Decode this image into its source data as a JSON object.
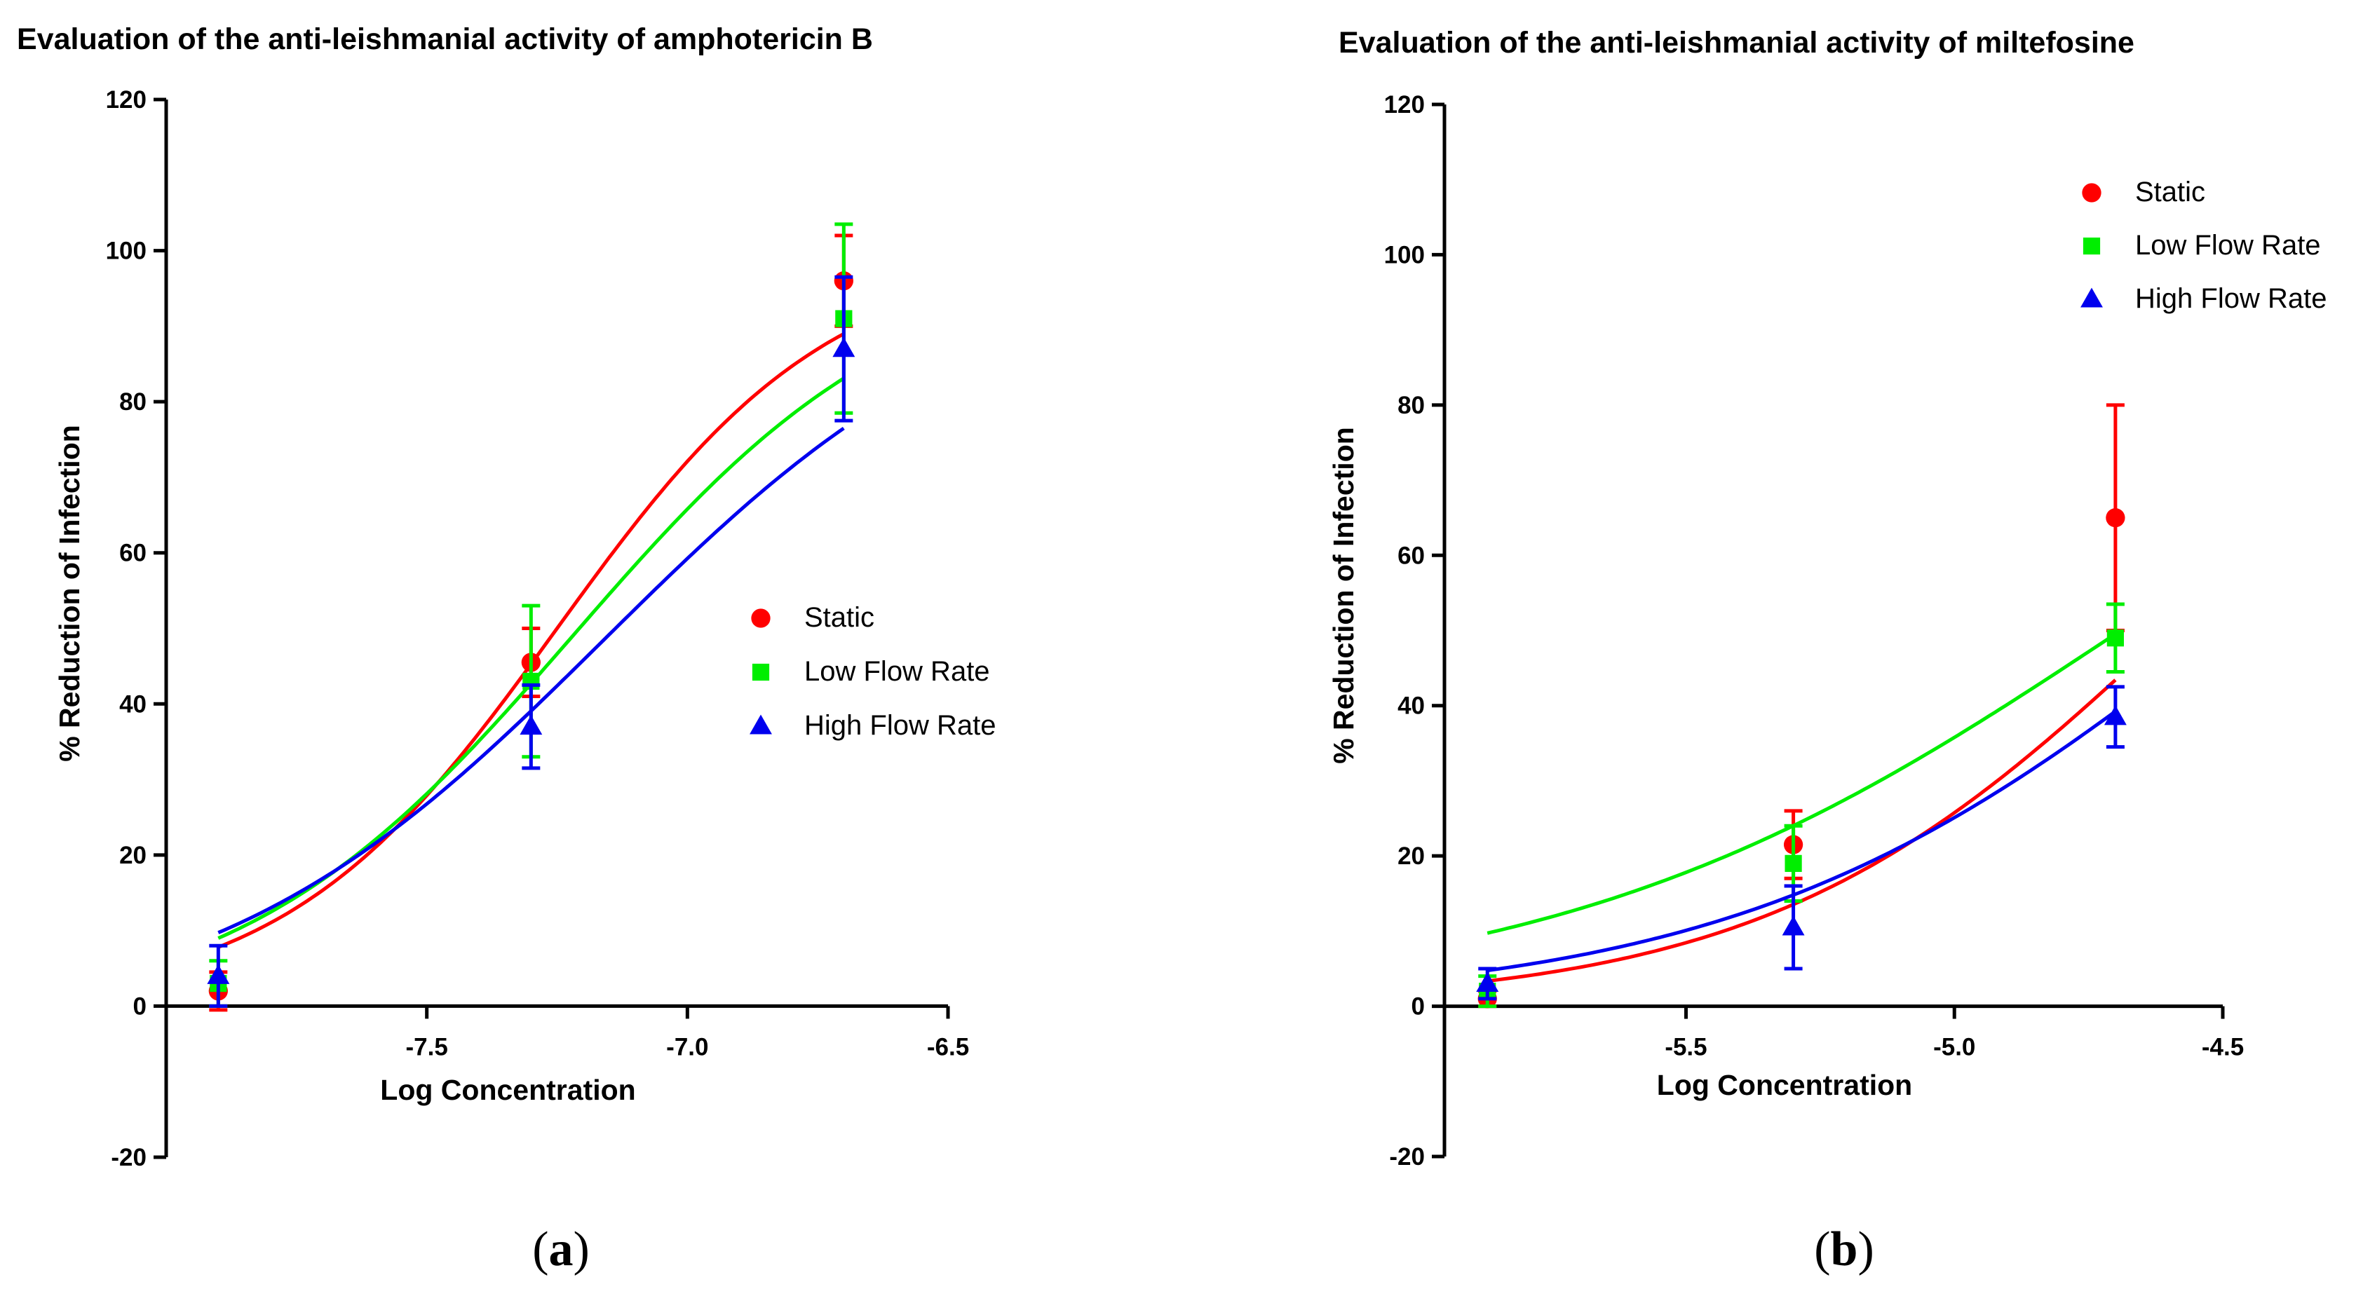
{
  "chart_data": [
    {
      "type": "line",
      "panel_label": "a",
      "title": "Evaluation of the anti-leishmanial activity of amphotericin B",
      "xlabel": "Log Concentration",
      "ylabel": "%  Reduction of Infection",
      "ylim": [
        -20,
        120
      ],
      "xlim": [
        -8.0,
        -6.5
      ],
      "xticks": [
        -7.5,
        -7.0,
        -6.5
      ],
      "xtick_labels": [
        "-7.5",
        "-7.0",
        "-6.5"
      ],
      "yticks": [
        -20,
        0,
        20,
        40,
        60,
        80,
        100,
        120
      ],
      "ytick_labels": [
        "-20",
        "0",
        "20",
        "40",
        "60",
        "80",
        "100",
        "120"
      ],
      "legend_position": "center-right",
      "series": [
        {
          "name": "Static",
          "color": "#ff0000",
          "marker": "circle",
          "x": [
            -7.9,
            -7.3,
            -6.7
          ],
          "values": [
            2,
            45.5,
            96
          ],
          "err": [
            2.5,
            4.5,
            6
          ],
          "curve": {
            "bottom": 0,
            "top": 100,
            "logEC50": -7.25,
            "hill": 1.65,
            "from": -7.9,
            "to": -6.7
          }
        },
        {
          "name": "Low Flow  Rate",
          "color": "#00ee00",
          "marker": "square",
          "x": [
            -7.9,
            -7.3,
            -6.7
          ],
          "values": [
            3,
            43,
            91
          ],
          "err": [
            3,
            10,
            12.5
          ],
          "curve": {
            "bottom": -2,
            "top": 100,
            "logEC50": -7.22,
            "hill": 1.35,
            "from": -7.9,
            "to": -6.7
          }
        },
        {
          "name": "High Flow Rate",
          "color": "#0000ee",
          "marker": "triangle",
          "x": [
            -7.9,
            -7.3,
            -6.7
          ],
          "values": [
            4,
            37,
            87
          ],
          "err": [
            4,
            5.5,
            9.5
          ],
          "curve": {
            "bottom": -3,
            "top": 100,
            "logEC50": -7.16,
            "hill": 1.15,
            "from": -7.9,
            "to": -6.7
          }
        }
      ]
    },
    {
      "type": "line",
      "panel_label": "b",
      "title": "Evaluation of the anti-leishmanial activity of miltefosine",
      "xlabel": "Log Concentration",
      "ylabel": "%  Reduction of Infection",
      "ylim": [
        -20,
        120
      ],
      "xlim": [
        -5.95,
        -4.5
      ],
      "xticks": [
        -5.5,
        -5.0,
        -4.5
      ],
      "xtick_labels": [
        "-5.5",
        "-5.0",
        "-4.5"
      ],
      "yticks": [
        -20,
        0,
        20,
        40,
        60,
        80,
        100,
        120
      ],
      "ytick_labels": [
        "-20",
        "0",
        "20",
        "40",
        "60",
        "80",
        "100",
        "120"
      ],
      "legend_position": "top-right",
      "series": [
        {
          "name": "Static",
          "color": "#ff0000",
          "marker": "circle",
          "x": [
            -5.87,
            -5.3,
            -4.7
          ],
          "values": [
            1,
            21.5,
            65
          ],
          "err": [
            1,
            4.5,
            15
          ],
          "curve": {
            "bottom": 0,
            "top": 100,
            "logEC50": -4.6,
            "hill": 1.15,
            "from": -5.87,
            "to": -4.7
          }
        },
        {
          "name": "Low Flow  Rate",
          "color": "#00ee00",
          "marker": "square",
          "x": [
            -5.87,
            -5.3,
            -4.7
          ],
          "values": [
            2,
            19,
            49
          ],
          "err": [
            2,
            5,
            4.5
          ],
          "curve": {
            "bottom": 0,
            "top": 100,
            "logEC50": -4.69,
            "hill": 0.82,
            "from": -5.87,
            "to": -4.7
          }
        },
        {
          "name": "High Flow Rate",
          "color": "#0000ee",
          "marker": "triangle",
          "x": [
            -5.87,
            -5.3,
            -4.7
          ],
          "values": [
            3,
            10.5,
            38.5
          ],
          "err": [
            2,
            5.5,
            4
          ],
          "curve": {
            "bottom": 0,
            "top": 100,
            "logEC50": -4.5,
            "hill": 0.95,
            "from": -5.87,
            "to": -4.7
          }
        }
      ]
    }
  ]
}
